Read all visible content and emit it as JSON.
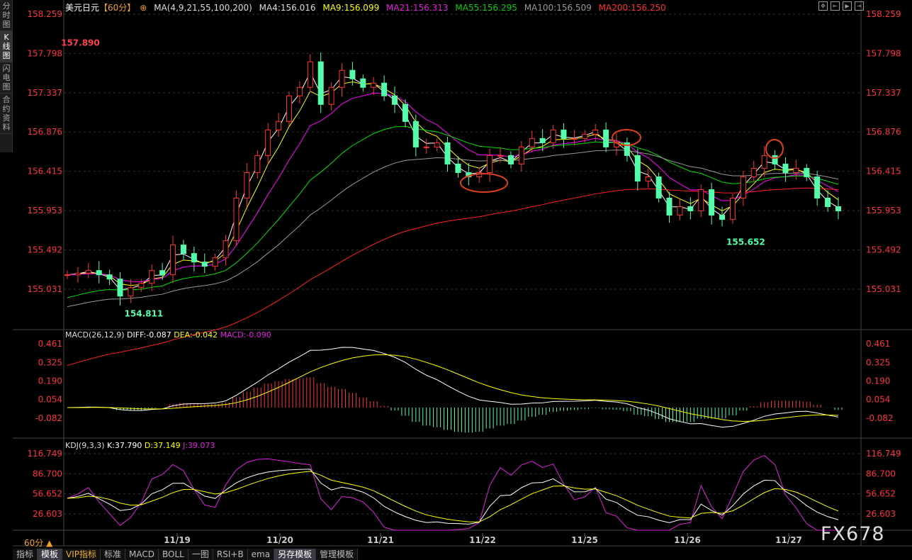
{
  "sidebar": [
    {
      "label": "分时图"
    },
    {
      "label": "K线图",
      "active": true
    },
    {
      "label": "闪电图"
    },
    {
      "label": "合约资料"
    }
  ],
  "header": {
    "symbol": "美元日元",
    "period": "【60分】",
    "ma_title": "MA(4,9,21,55,100,200)",
    "ma4": "MA4:156.016",
    "ma9": "MA9:156.099",
    "ma21": "MA21:156.313",
    "ma55": "MA55:156.295",
    "ma100": "MA100:156.509",
    "ma200": "MA200:156.250"
  },
  "colors": {
    "up": "#ff3232",
    "down": "#54ffab",
    "ma4": "#ffffff",
    "ma9": "#ffff00",
    "ma21": "#ff00ff",
    "ma55": "#00e000",
    "ma100": "#999999",
    "ma200": "#ff2020",
    "axis": "#ff3040"
  },
  "macd_header": {
    "title": "MACD(26,12,9)",
    "diff": "DIFF:-0.087",
    "dea": "DEA:-0.042",
    "macd": "MACD:-0.090"
  },
  "kdj_header": {
    "title": "KDJ(9,3,3)",
    "k": "K:37.790",
    "d": "D:37.149",
    "j": "J:39.073"
  },
  "period_selector": "60分 ▲",
  "bottom_tabs": [
    "指标",
    "模板",
    "VIP指标",
    "标准",
    "MACD",
    "BOLL",
    "一图",
    "RSI+B",
    "ema",
    "另存模板",
    "管理模板"
  ],
  "watermark": "FX678",
  "chart_data": [
    {
      "type": "candlestick",
      "title": "美元日元 60分",
      "x_ticks": [
        "11/19",
        "11/20",
        "11/21",
        "11/22",
        "11/25",
        "11/26",
        "11/27"
      ],
      "y_ticks": [
        "158.259",
        "157.798",
        "157.337",
        "156.876",
        "156.415",
        "155.953",
        "155.492",
        "155.031"
      ],
      "ylim": [
        154.75,
        158.259
      ],
      "annotations": [
        {
          "label": "157.890",
          "value": 157.89,
          "type": "high"
        },
        {
          "label": "154.811",
          "value": 154.811,
          "type": "low"
        },
        {
          "label": "155.652",
          "value": 155.652,
          "type": "low"
        }
      ],
      "closes": [
        155.2,
        155.22,
        155.25,
        155.2,
        155.15,
        154.95,
        155.05,
        155.1,
        155.25,
        155.2,
        155.55,
        155.45,
        155.35,
        155.3,
        155.4,
        155.6,
        156.1,
        156.4,
        156.6,
        156.9,
        157.0,
        157.3,
        157.4,
        157.7,
        157.2,
        157.4,
        157.6,
        157.5,
        157.4,
        157.45,
        157.3,
        157.2,
        157.0,
        156.7,
        156.7,
        156.75,
        156.5,
        156.4,
        156.35,
        156.4,
        156.6,
        156.6,
        156.5,
        156.7,
        156.8,
        156.75,
        156.9,
        156.8,
        156.8,
        156.85,
        156.9,
        156.7,
        156.75,
        156.6,
        156.3,
        156.35,
        156.1,
        155.9,
        156.0,
        155.95,
        156.2,
        155.9,
        155.85,
        156.1,
        156.35,
        156.45,
        156.6,
        156.5,
        156.4,
        156.45,
        156.35,
        156.1,
        156.0,
        155.95
      ]
    },
    {
      "type": "line",
      "title": "MACD(26,12,9)",
      "y_ticks": [
        "0.461",
        "0.325",
        "0.190",
        "0.054",
        "-0.082"
      ],
      "series": [
        {
          "name": "DIFF"
        },
        {
          "name": "DEA"
        },
        {
          "name": "MACD"
        }
      ]
    },
    {
      "type": "line",
      "title": "KDJ(9,3,3)",
      "y_ticks": [
        "116.749",
        "86.700",
        "56.652",
        "26.603"
      ],
      "series": [
        {
          "name": "K"
        },
        {
          "name": "D"
        },
        {
          "name": "J"
        }
      ]
    }
  ]
}
